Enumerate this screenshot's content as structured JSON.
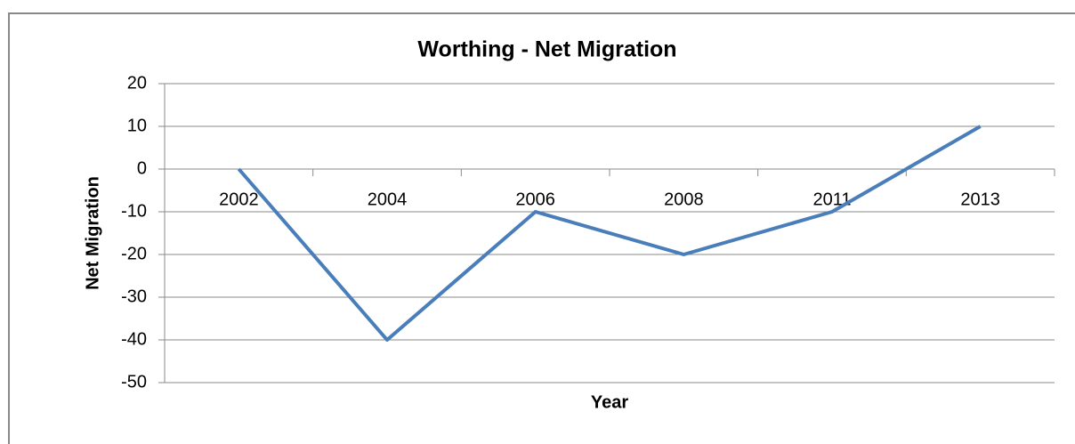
{
  "chart_data": {
    "type": "line",
    "title": "Worthing - Net Migration",
    "xlabel": "Year",
    "ylabel": "Net Migration",
    "categories": [
      "2002",
      "2004",
      "2006",
      "2008",
      "2011",
      "2013"
    ],
    "series": [
      {
        "name": "Net Migration",
        "color": "#4a7ebb",
        "values": [
          0,
          -40,
          -10,
          -20,
          -10,
          10
        ]
      }
    ],
    "ylim": [
      -50,
      20
    ],
    "yticks": [
      -50,
      -40,
      -30,
      -20,
      -10,
      0,
      10,
      20
    ],
    "grid": true
  }
}
